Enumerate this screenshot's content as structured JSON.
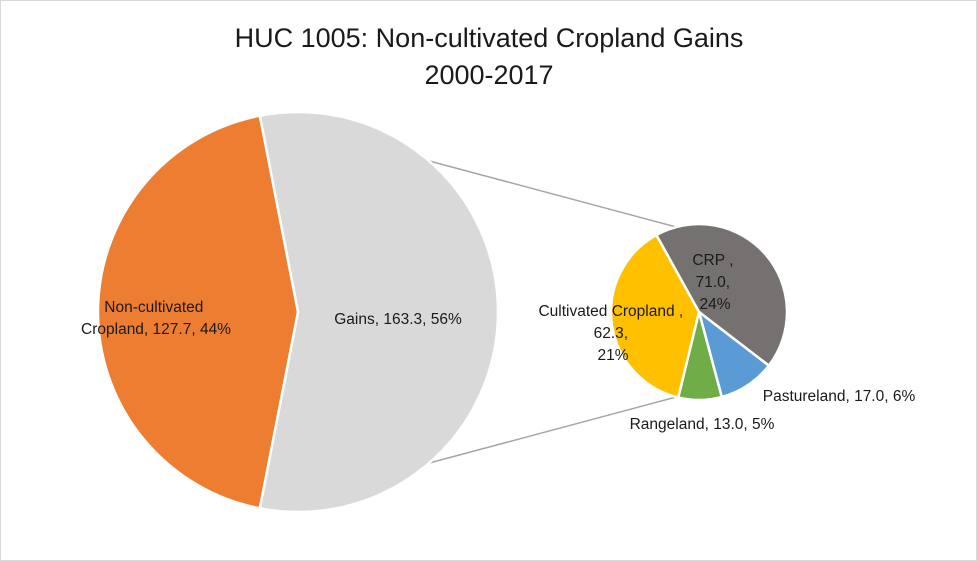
{
  "chart_data": {
    "type": "pie",
    "subtype": "pie-of-pie",
    "title": "HUC 1005: Non-cultivated Cropland Gains",
    "subtitle": "2000-2017",
    "main_pie": {
      "slices": [
        {
          "name": "Non-cultivated Cropland",
          "value": 127.7,
          "percent": "44%",
          "color": "#ed7d31",
          "label_lines": [
            "Non-cultivated",
            "Cropland, 127.7, 44%"
          ]
        },
        {
          "name": "Gains",
          "value": 163.3,
          "percent": "56%",
          "color": "#d9d9d9",
          "label_lines": [
            "Gains, 163.3, 56%"
          ]
        }
      ]
    },
    "secondary_pie": {
      "expands": "Gains",
      "slices": [
        {
          "name": "CRP",
          "value": 71.0,
          "percent": "24%",
          "color": "#767171",
          "label_lines": [
            "CRP ,",
            "71.0,",
            "24%"
          ]
        },
        {
          "name": "Pastureland",
          "value": 17.0,
          "percent": "6%",
          "color": "#5b9bd5",
          "label_lines": [
            "Pastureland, 17.0, 6%"
          ]
        },
        {
          "name": "Rangeland",
          "value": 13.0,
          "percent": "5%",
          "color": "#70ad47",
          "label_lines": [
            "Rangeland, 13.0, 5%"
          ]
        },
        {
          "name": "Cultivated Cropland",
          "value": 62.3,
          "percent": "21%",
          "color": "#ffc000",
          "label_lines": [
            "Cultivated Cropland ,",
            "62.3,",
            "21%"
          ]
        }
      ]
    },
    "legend": "none",
    "connector_color": "#a6a6a6"
  }
}
